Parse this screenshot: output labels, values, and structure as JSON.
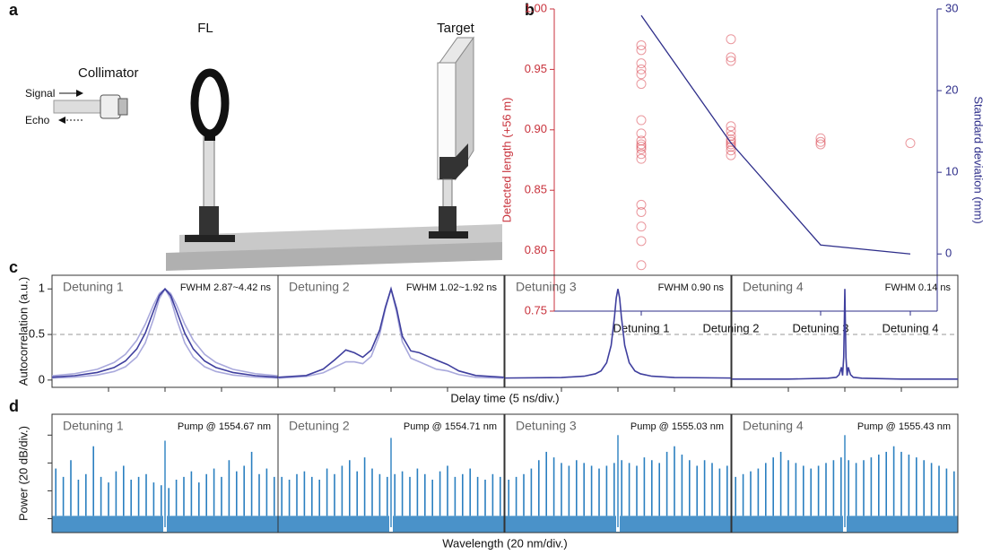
{
  "diagram": {
    "label": "a",
    "fl": "FL",
    "target": "Target",
    "collimator": "Collimator",
    "signal": "Signal",
    "echo": "Echo"
  },
  "chart_data": [
    {
      "type": "scatter",
      "panel_label": "b",
      "categories": [
        "Detuning 1",
        "Detuning 2",
        "Detuning 3",
        "Detuning 4"
      ],
      "points": [
        [
          0.97,
          0.966,
          0.955,
          0.95,
          0.946,
          0.938,
          0.908,
          0.897,
          0.891,
          0.888,
          0.886,
          0.884,
          0.88,
          0.876,
          0.838,
          0.832,
          0.82,
          0.808,
          0.788
        ],
        [
          0.975,
          0.96,
          0.957,
          0.903,
          0.899,
          0.895,
          0.892,
          0.89,
          0.888,
          0.886,
          0.883,
          0.879
        ],
        [
          0.893,
          0.89,
          0.888
        ],
        [
          0.889
        ]
      ],
      "point_color": "#d9434e",
      "ylabel": "Detected length (+56 m)",
      "ycolor": "#c8323c",
      "ylim": [
        0.75,
        1.0
      ],
      "yticks": [
        {
          "value": 0.75,
          "label": "0.75"
        },
        {
          "value": 0.8,
          "label": "0.80"
        },
        {
          "value": 0.85,
          "label": "0.85"
        },
        {
          "value": 0.9,
          "label": "0.90"
        },
        {
          "value": 0.95,
          "label": "0.95"
        },
        {
          "value": 1.0,
          "label": "1.00"
        }
      ],
      "y2label": "Standard deviation (mm)",
      "y2color": "#2e2e8a",
      "y2lim": [
        -7,
        30
      ],
      "y2ticks": [
        0,
        10,
        20,
        30
      ],
      "series": [
        {
          "values": [
            29.2,
            13.6,
            1.1,
            0
          ],
          "color": "#2e2e8a",
          "axis": "y2"
        }
      ]
    },
    {
      "type": "line",
      "row_label": "c",
      "xlabel": "Delay time (5 ns/div.)",
      "ylabel": "Autocorrelation (a.u.)",
      "title": "Detuning 1",
      "annotation": "FWHM 2.87~4.42 ns",
      "x": [
        -2,
        -1.6,
        -1.2,
        -0.9,
        -0.7,
        -0.5,
        -0.35,
        -0.2,
        -0.1,
        0,
        0.1,
        0.2,
        0.35,
        0.5,
        0.7,
        0.9,
        1.2,
        1.6,
        2
      ],
      "series": [
        {
          "color": "#a9a9dc",
          "values": [
            0.046,
            0.07,
            0.118,
            0.193,
            0.283,
            0.436,
            0.612,
            0.829,
            0.951,
            1,
            0.951,
            0.829,
            0.612,
            0.436,
            0.283,
            0.193,
            0.118,
            0.07,
            0.046
          ]
        },
        {
          "color": "#a9a9dc",
          "values": [
            0.021,
            0.032,
            0.055,
            0.094,
            0.146,
            0.252,
            0.407,
            0.678,
            0.894,
            1,
            0.894,
            0.678,
            0.407,
            0.252,
            0.146,
            0.094,
            0.055,
            0.032,
            0.021
          ]
        },
        {
          "color": "#3f3f9e",
          "values": [
            0.031,
            0.048,
            0.083,
            0.138,
            0.209,
            0.341,
            0.514,
            0.764,
            0.928,
            1,
            0.928,
            0.764,
            0.514,
            0.341,
            0.209,
            0.138,
            0.083,
            0.048,
            0.031
          ]
        }
      ],
      "xlim": [
        -2,
        2
      ],
      "xticks": [
        -1,
        0,
        1
      ],
      "ylim": [
        -0.08,
        1.15
      ],
      "yticks": [
        0,
        0.5,
        1
      ],
      "hline": 0.5
    },
    {
      "type": "line",
      "title": "Detuning 2",
      "annotation": "FWHM 1.02~1.92 ns",
      "x": [
        -2,
        -1.5,
        -1.2,
        -1,
        -0.8,
        -0.65,
        -0.5,
        -0.35,
        -0.2,
        -0.1,
        0,
        0.1,
        0.2,
        0.35,
        0.5,
        0.65,
        0.8,
        1,
        1.2,
        1.5,
        2
      ],
      "series": [
        {
          "color": "#a9a9dc",
          "values": [
            0.02,
            0.04,
            0.08,
            0.14,
            0.2,
            0.2,
            0.18,
            0.26,
            0.5,
            0.78,
            1,
            0.74,
            0.42,
            0.24,
            0.2,
            0.16,
            0.12,
            0.1,
            0.06,
            0.03,
            0.02
          ]
        },
        {
          "color": "#3f3f9e",
          "values": [
            0.03,
            0.05,
            0.12,
            0.22,
            0.33,
            0.3,
            0.25,
            0.33,
            0.55,
            0.8,
            1,
            0.78,
            0.48,
            0.32,
            0.3,
            0.26,
            0.22,
            0.17,
            0.1,
            0.05,
            0.03
          ]
        }
      ],
      "xlim": [
        -2,
        2
      ],
      "xticks": [
        -1,
        0,
        1
      ],
      "ylim": [
        -0.08,
        1.15
      ],
      "hline": 0.5
    },
    {
      "type": "line",
      "title": "Detuning 3",
      "annotation": "FWHM 0.90 ns",
      "x": [
        -2,
        -1,
        -0.6,
        -0.4,
        -0.3,
        -0.2,
        -0.12,
        -0.06,
        -0.03,
        0,
        0.03,
        0.06,
        0.12,
        0.2,
        0.3,
        0.4,
        0.6,
        1,
        2
      ],
      "series": [
        {
          "color": "#3f3f9e",
          "values": [
            0.022,
            0.028,
            0.042,
            0.068,
            0.1,
            0.19,
            0.38,
            0.7,
            0.9,
            1,
            0.9,
            0.7,
            0.38,
            0.19,
            0.1,
            0.068,
            0.042,
            0.028,
            0.022
          ]
        }
      ],
      "xlim": [
        -2,
        2
      ],
      "xticks": [
        -1,
        0,
        1
      ],
      "ylim": [
        -0.08,
        1.15
      ],
      "hline": 0.5
    },
    {
      "type": "line",
      "title": "Detuning 4",
      "annotation": "FWHM 0.14 ns",
      "x": [
        -2,
        -1,
        -0.3,
        -0.15,
        -0.1,
        -0.06,
        -0.04,
        -0.02,
        -0.01,
        0,
        0.01,
        0.02,
        0.04,
        0.06,
        0.1,
        0.15,
        0.3,
        1,
        2
      ],
      "series": [
        {
          "color": "#3f3f9e",
          "values": [
            0.01,
            0.01,
            0.02,
            0.03,
            0.06,
            0.14,
            0.05,
            0.25,
            0.6,
            1,
            0.6,
            0.25,
            0.05,
            0.14,
            0.06,
            0.03,
            0.02,
            0.01,
            0.01
          ]
        }
      ],
      "xlim": [
        -2,
        2
      ],
      "xticks": [
        -1,
        0,
        1
      ],
      "ylim": [
        -0.08,
        1.15
      ],
      "hline": 0.5
    },
    {
      "type": "comb",
      "row_label": "d",
      "xlabel": "Wavelength (20 nm/div.)",
      "ylabel": "Power (20 dB/div.)",
      "title": "Detuning 1",
      "annotation": "Pump @ 1554.67 nm",
      "color": "#2a7fc0",
      "values": [
        2.3,
        2.0,
        2.6,
        1.9,
        2.1,
        3.1,
        2.0,
        1.8,
        2.2,
        2.4,
        1.9,
        2.0,
        2.1,
        1.8,
        1.7,
        1.6,
        1.9,
        2.0,
        2.2,
        1.8,
        2.1,
        2.3,
        2.0,
        2.6,
        2.2,
        2.4,
        2.9,
        2.1,
        2.3,
        2.0
      ],
      "pump": 3.3,
      "floor": 0.6,
      "ylim": [
        0,
        4.25
      ],
      "yticks": [
        0.5,
        1.5,
        2.5,
        3.5
      ]
    },
    {
      "type": "comb",
      "title": "Detuning 2",
      "annotation": "Pump @ 1554.71 nm",
      "color": "#2a7fc0",
      "values": [
        2.0,
        1.9,
        2.1,
        2.2,
        2.0,
        1.9,
        2.3,
        2.1,
        2.4,
        2.6,
        2.2,
        2.7,
        2.3,
        2.1,
        2.0,
        2.1,
        2.2,
        2.0,
        2.3,
        2.1,
        1.9,
        2.2,
        2.4,
        2.0,
        2.1,
        2.3,
        2.0,
        1.9,
        2.1,
        2.0
      ],
      "pump": 3.4,
      "floor": 0.6,
      "ylim": [
        0,
        4.25
      ]
    },
    {
      "type": "comb",
      "title": "Detuning 3",
      "annotation": "Pump @ 1555.03 nm",
      "color": "#2a7fc0",
      "values": [
        1.9,
        2.0,
        2.1,
        2.3,
        2.6,
        2.9,
        2.7,
        2.5,
        2.4,
        2.6,
        2.5,
        2.4,
        2.3,
        2.4,
        2.5,
        2.6,
        2.5,
        2.4,
        2.7,
        2.6,
        2.5,
        2.9,
        3.1,
        2.8,
        2.6,
        2.4,
        2.6,
        2.5,
        2.3,
        2.4
      ],
      "pump": 3.5,
      "floor": 0.6,
      "ylim": [
        0,
        4.25
      ]
    },
    {
      "type": "comb",
      "title": "Detuning 4",
      "annotation": "Pump @ 1555.43 nm",
      "color": "#2a7fc0",
      "values": [
        2.0,
        2.1,
        2.2,
        2.3,
        2.5,
        2.7,
        2.9,
        2.6,
        2.5,
        2.4,
        2.3,
        2.4,
        2.5,
        2.6,
        2.7,
        2.6,
        2.5,
        2.6,
        2.7,
        2.8,
        2.9,
        3.1,
        2.9,
        2.8,
        2.7,
        2.6,
        2.5,
        2.4,
        2.3,
        2.2
      ],
      "pump": 3.5,
      "floor": 0.6,
      "ylim": [
        0,
        4.25
      ]
    }
  ]
}
